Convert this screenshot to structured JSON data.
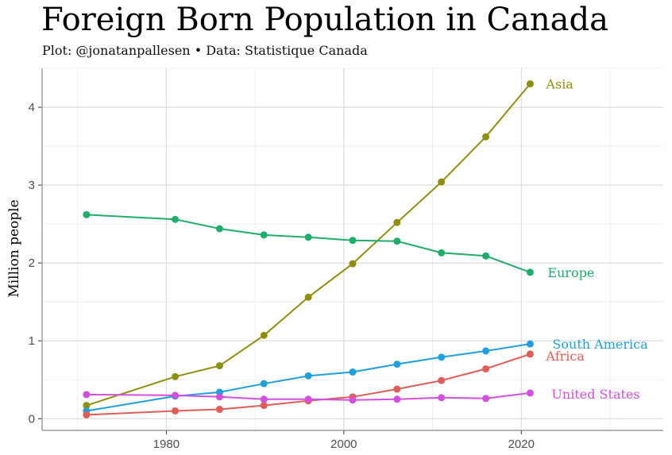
{
  "header": {
    "title": "Foreign Born Population in Canada",
    "subtitle": "Plot: @jonatanpallesen • Data: Statistique Canada"
  },
  "chart_data": {
    "type": "line",
    "title": "Foreign Born Population in Canada",
    "subtitle": "Plot: @jonatanpallesen • Data: Statistique Canada",
    "xlabel": "",
    "ylabel": "Million people",
    "xlim": [
      1966,
      2036
    ],
    "ylim": [
      -0.15,
      4.5
    ],
    "x_ticks": [
      1980,
      2000,
      2020
    ],
    "y_ticks": [
      0,
      1,
      2,
      3,
      4
    ],
    "grid": true,
    "legend": "direct labels at line ends",
    "x": [
      1971,
      1981,
      1986,
      1991,
      1996,
      2001,
      2006,
      2011,
      2016,
      2021
    ],
    "series": [
      {
        "name": "Asia",
        "color": "#8f8f0f",
        "values": [
          0.17,
          0.54,
          0.68,
          1.07,
          1.56,
          1.99,
          2.52,
          3.04,
          3.62,
          4.3
        ]
      },
      {
        "name": "Europe",
        "color": "#1fad6b",
        "values": [
          2.62,
          2.56,
          2.44,
          2.36,
          2.33,
          2.29,
          2.28,
          2.13,
          2.09,
          1.88
        ]
      },
      {
        "name": "South America",
        "color": "#1f9fdc",
        "values": [
          0.1,
          0.29,
          0.34,
          0.45,
          0.55,
          0.6,
          0.7,
          0.79,
          0.87,
          0.96
        ]
      },
      {
        "name": "Africa",
        "color": "#e05c56",
        "values": [
          0.05,
          0.1,
          0.12,
          0.17,
          0.23,
          0.28,
          0.38,
          0.49,
          0.64,
          0.83
        ]
      },
      {
        "name": "United States",
        "color": "#d44fe0",
        "values": [
          0.31,
          0.3,
          0.28,
          0.25,
          0.25,
          0.24,
          0.25,
          0.27,
          0.26,
          0.33
        ]
      }
    ]
  }
}
